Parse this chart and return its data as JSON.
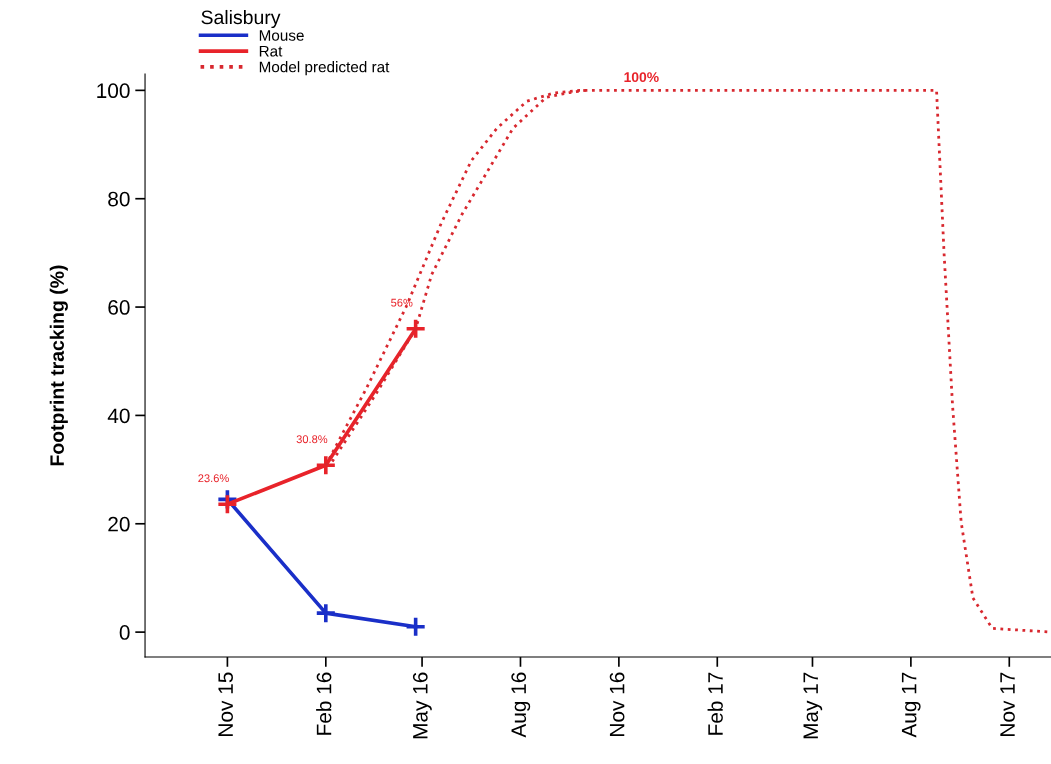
{
  "chart_data": {
    "type": "line",
    "ylabel": "Footprint tracking (%)",
    "legend_title": "Salisbury",
    "legend": "top left",
    "xlim": [
      "2015-08-16",
      "2017-12-10"
    ],
    "ylim": [
      -4.6,
      103
    ],
    "xticks": [
      {
        "value": "2015-11-01",
        "label": "Nov 15"
      },
      {
        "value": "2016-02-01",
        "label": "Feb 16"
      },
      {
        "value": "2016-05-01",
        "label": "May 16"
      },
      {
        "value": "2016-08-01",
        "label": "Aug 16"
      },
      {
        "value": "2016-11-01",
        "label": "Nov 16"
      },
      {
        "value": "2017-02-01",
        "label": "Feb 17"
      },
      {
        "value": "2017-05-01",
        "label": "May 17"
      },
      {
        "value": "2017-08-01",
        "label": "Aug 17"
      },
      {
        "value": "2017-11-01",
        "label": "Nov 17"
      }
    ],
    "yticks": [
      0,
      20,
      40,
      60,
      80,
      100
    ],
    "series": [
      {
        "name": "Mouse",
        "color": "#1a2fc8",
        "x": [
          "2015-11-01",
          "2016-02-01",
          "2016-04-25"
        ],
        "values": [
          24.5,
          3.5,
          1
        ],
        "marker": "cross",
        "line_style": "solid"
      },
      {
        "name": "Rat",
        "color": "#e8232a",
        "x": [
          "2015-11-01",
          "2016-02-01",
          "2016-04-25"
        ],
        "values": [
          23.6,
          30.8,
          56
        ],
        "marker": "cross",
        "line_style": "solid",
        "value_labels": [
          "23.6%",
          "30.8%",
          "56%"
        ]
      },
      {
        "name": "Model predicted rat",
        "color": "#d8282f",
        "marker": "none",
        "line_style": "dotted",
        "x": [
          "2016-02-01",
          "2016-03-10",
          "2016-04-16",
          "2016-05-19",
          "2016-06-16",
          "2016-07-10",
          "2016-08-07",
          "2016-09-01",
          "2016-09-25",
          "2017-08-25",
          "2017-09-01",
          "2017-09-09",
          "2017-09-17",
          "2017-09-28",
          "2017-10-16",
          "2017-12-10"
        ],
        "values": [
          30.8,
          45,
          60,
          75.5,
          87,
          93,
          98,
          99.5,
          100,
          100,
          70,
          41.7,
          20.3,
          6.3,
          0.7,
          0
        ]
      },
      {
        "color": "#d8282f",
        "marker": "none",
        "line_style": "dotted",
        "x": [
          "2016-02-07",
          "2016-03-19",
          "2016-04-25",
          "2016-05-10",
          "2016-06-07",
          "2016-07-01",
          "2016-07-25",
          "2016-08-25",
          "2016-09-16",
          "2016-10-01"
        ],
        "values": [
          31.5,
          44,
          56,
          66,
          77,
          85,
          93,
          98.7,
          99.6,
          100
        ]
      }
    ],
    "annotations": [
      {
        "text": "100%",
        "x": "2016-11-22",
        "y": 100
      }
    ]
  }
}
